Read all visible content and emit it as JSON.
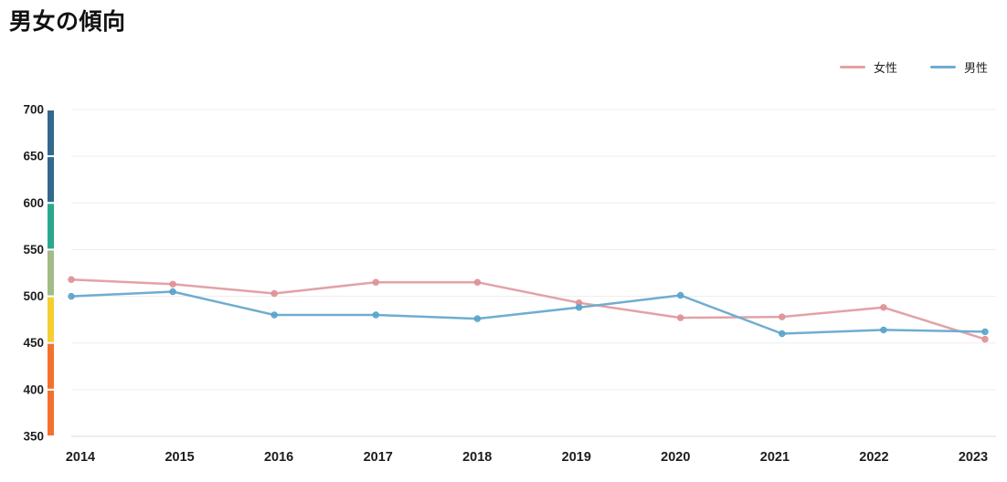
{
  "title": "男女の傾向",
  "legend": [
    {
      "label": "女性",
      "color": "#e2a2a6"
    },
    {
      "label": "男性",
      "color": "#6fadd0"
    }
  ],
  "chart_data": {
    "type": "line",
    "title": "男女の傾向",
    "x": [
      "2014",
      "2015",
      "2016",
      "2017",
      "2018",
      "2019",
      "2020",
      "2021",
      "2022",
      "2023"
    ],
    "series": [
      {
        "name": "女性",
        "color": "#e2a2a6",
        "marker_color": "#dd9097",
        "values": [
          518,
          513,
          503,
          515,
          515,
          493,
          477,
          478,
          488,
          454
        ]
      },
      {
        "name": "男性",
        "color": "#6fadd0",
        "marker_color": "#57a3ca",
        "values": [
          500,
          505,
          480,
          480,
          476,
          488,
          501,
          460,
          464,
          462
        ]
      }
    ],
    "ylim": [
      350,
      700
    ],
    "yticks": [
      350,
      400,
      450,
      500,
      550,
      600,
      650,
      700
    ],
    "grid": true,
    "legend_position": "top-right",
    "y_axis_colorbar_colors_top_to_bottom": [
      "#34688e",
      "#34688e",
      "#2ba88c",
      "#a2bb87",
      "#f4cf33",
      "#f4702f",
      "#f4702f"
    ],
    "colors": {
      "grid_line": "#ededed",
      "axis_line": "#d8d8d8",
      "tick_label": "#1d1d1f",
      "title": "#111111"
    }
  }
}
